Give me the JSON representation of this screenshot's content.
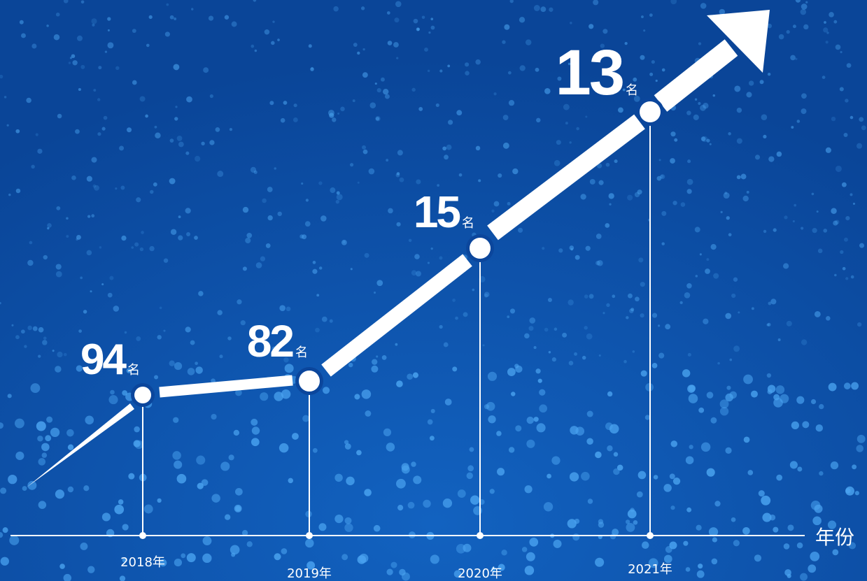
{
  "axis_label": "年份",
  "points": [
    {
      "year": "2018年",
      "rank": 94,
      "unit": "名"
    },
    {
      "year": "2019年",
      "rank": 82,
      "unit": "名"
    },
    {
      "year": "2020年",
      "rank": 15,
      "unit": "名"
    },
    {
      "year": "2021年",
      "rank": 13,
      "unit": "名"
    }
  ]
}
